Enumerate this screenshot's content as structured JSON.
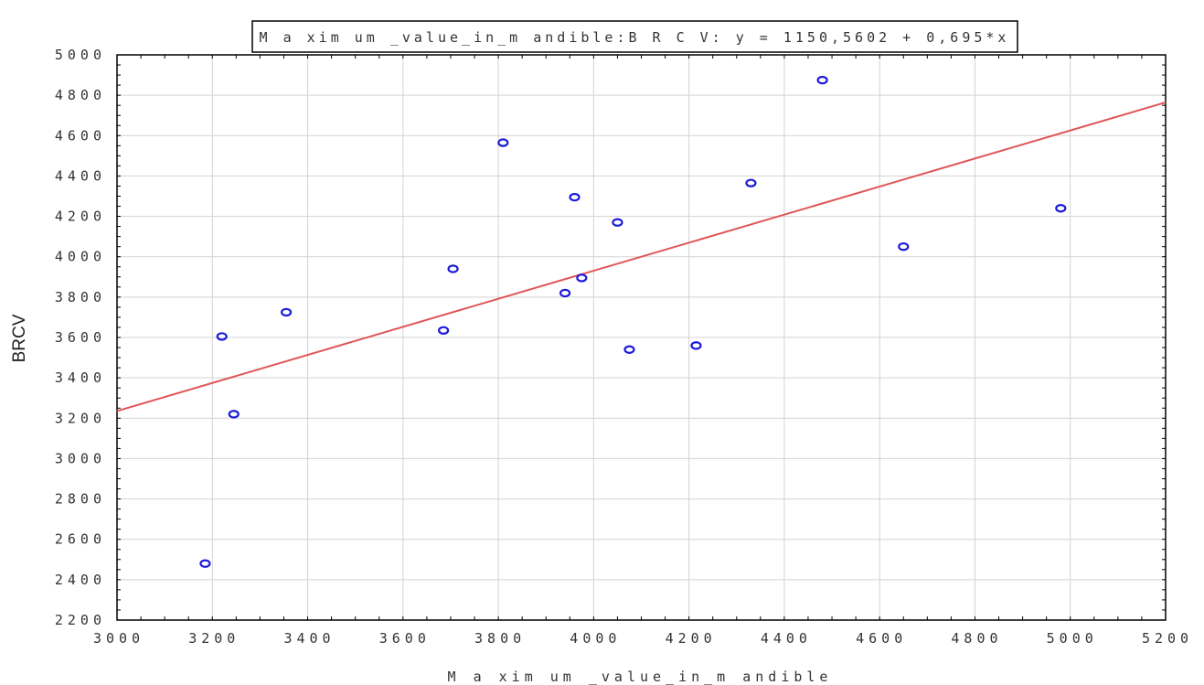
{
  "chart_data": {
    "type": "scatter",
    "title": "M a xim um _value_in_m andible:B R C V:  y = 1150,5602 + 0,695*x",
    "xlabel": "M a xim um _value_in_m andible",
    "ylabel": "BRCV",
    "xlim": [
      3000,
      5200
    ],
    "ylim": [
      2200,
      5000
    ],
    "x_ticks": [
      3000,
      3200,
      3400,
      3600,
      3800,
      4000,
      4200,
      4400,
      4600,
      4800,
      5000,
      5200
    ],
    "y_ticks": [
      2200,
      2400,
      2600,
      2800,
      3000,
      3200,
      3400,
      3600,
      3800,
      4000,
      4200,
      4400,
      4600,
      4800,
      5000
    ],
    "grid": true,
    "colors": {
      "points": "#1a1adb",
      "fit_line": "#e05555",
      "grid": "#d3d3d3",
      "frame": "#000000"
    },
    "regression": {
      "intercept": 1150.5602,
      "slope": 0.695
    },
    "points": [
      {
        "x": 3185,
        "y": 2480
      },
      {
        "x": 3220,
        "y": 3605
      },
      {
        "x": 3245,
        "y": 3220
      },
      {
        "x": 3355,
        "y": 3725
      },
      {
        "x": 3685,
        "y": 3635
      },
      {
        "x": 3705,
        "y": 3940
      },
      {
        "x": 3810,
        "y": 4565
      },
      {
        "x": 3940,
        "y": 3820
      },
      {
        "x": 3960,
        "y": 4295
      },
      {
        "x": 3975,
        "y": 3895
      },
      {
        "x": 4050,
        "y": 4170
      },
      {
        "x": 4075,
        "y": 3540
      },
      {
        "x": 4215,
        "y": 3560
      },
      {
        "x": 4330,
        "y": 4365
      },
      {
        "x": 4480,
        "y": 4875
      },
      {
        "x": 4650,
        "y": 4050
      },
      {
        "x": 4980,
        "y": 4240
      }
    ]
  }
}
